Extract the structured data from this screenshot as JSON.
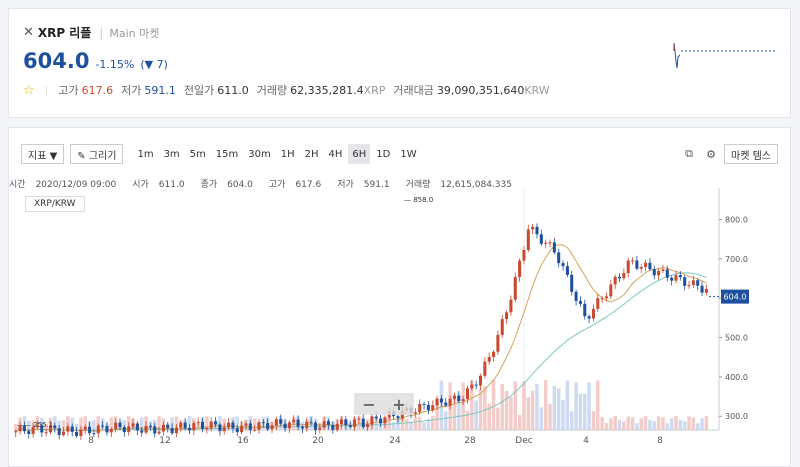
{
  "header": {
    "coin_symbol": "XRP",
    "coin_name": "리플",
    "market": "Main 마켓",
    "price": "604.0",
    "change_percent": "-1.15%",
    "change_value": "▼ 7",
    "stats": [
      {
        "label": "고가",
        "value": "617.6",
        "dir": "up"
      },
      {
        "label": "저가",
        "value": "591.1",
        "dir": "down"
      },
      {
        "label": "전일가",
        "value": "611.0",
        "dir": "none"
      },
      {
        "label": "거래량",
        "value": "62,335,281.4",
        "unit": "XRP",
        "dir": "none"
      },
      {
        "label": "거래대금",
        "value": "39,090,351,640",
        "unit": "KRW",
        "dir": "none"
      }
    ]
  },
  "toolbar": {
    "indicator_label": "지표 ▼",
    "draw_label": "✎ 그리기",
    "intervals": [
      "1m",
      "3m",
      "5m",
      "15m",
      "30m",
      "1H",
      "2H",
      "4H",
      "6H",
      "1D",
      "1W"
    ],
    "active_interval": "6H",
    "market_index_label": "마켓 템스"
  },
  "ohlc": {
    "time_label": "시간",
    "time": "2020/12/09 09:00",
    "open_label": "시가",
    "open": "611.0",
    "close_label": "종가",
    "close": "604.0",
    "high_label": "고가",
    "high": "617.6",
    "low_label": "저가",
    "low": "591.1",
    "volume_label": "거래량",
    "volume": "12,615,084.335"
  },
  "pair_label": "XRP/KRW",
  "chart_data": {
    "type": "candlestick",
    "x_ticks": [
      "8",
      "12",
      "16",
      "20",
      "24",
      "28",
      "Dec",
      "4",
      "8"
    ],
    "y_ticks": [
      "800.0",
      "700.0",
      "600.0",
      "500.0",
      "400.0",
      "300.0"
    ],
    "ylim": [
      265,
      880
    ],
    "max_label": "858.0",
    "min_label": "255.1",
    "last_price_label": "604.0",
    "colors": {
      "up": "#c84a31",
      "down": "#1e50a0",
      "ma_short": "#d4a35a",
      "ma_long": "#7ec8c0"
    }
  },
  "zoom": {
    "minus": "−",
    "plus": "+"
  }
}
